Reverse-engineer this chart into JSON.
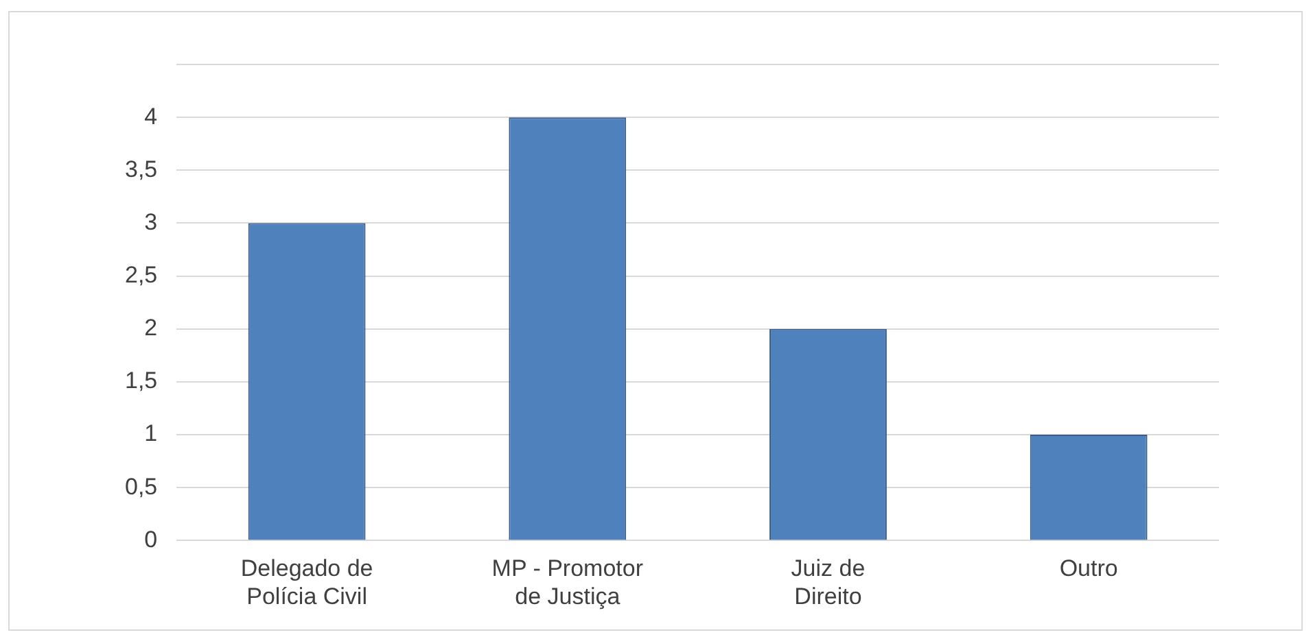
{
  "chart_data": {
    "type": "bar",
    "categories": [
      "Delegado de Polícia Civil",
      "MP - Promotor de Justiça",
      "Juiz de Direito",
      "Outro"
    ],
    "values": [
      3,
      4,
      2,
      1
    ],
    "color": "#4f81bd",
    "ylim": [
      0,
      4.5
    ],
    "yticks": [
      0,
      {
        "value": 0.5,
        "label": "0,5"
      },
      1,
      {
        "value": 1.5,
        "label": "1,5"
      },
      2,
      {
        "value": 2.5,
        "label": "2,5"
      },
      3,
      {
        "value": 3.5,
        "label": "3,5"
      },
      4,
      {
        "value": 4.5,
        "label": null
      }
    ],
    "grid": "y",
    "legend": false
  }
}
